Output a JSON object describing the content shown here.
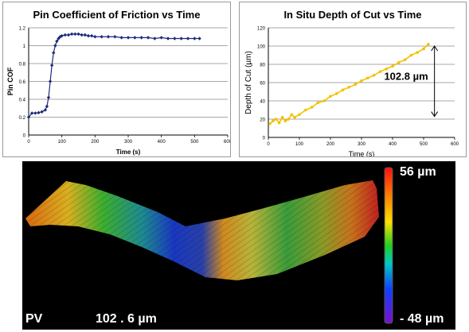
{
  "chart_data": [
    {
      "type": "scatter",
      "title": "Pin Coefficient of Friction vs Time",
      "xlabel": "Time (s)",
      "ylabel": "Pin COF",
      "xlim": [
        0,
        600
      ],
      "ylim": [
        0,
        1.2
      ],
      "xticks": [
        "0",
        "100",
        "200",
        "300",
        "400",
        "500",
        "600"
      ],
      "yticks": [
        "0",
        "0.2",
        "0.4",
        "0.6",
        "0.8",
        "1",
        "1.2"
      ],
      "grid": "horizontal",
      "color": "#1f2a7a",
      "x": [
        0,
        10,
        20,
        30,
        40,
        50,
        55,
        60,
        65,
        70,
        75,
        80,
        85,
        90,
        95,
        100,
        110,
        120,
        130,
        140,
        150,
        160,
        170,
        180,
        190,
        200,
        220,
        240,
        260,
        280,
        300,
        320,
        340,
        360,
        380,
        400,
        420,
        440,
        460,
        480,
        500,
        515
      ],
      "y": [
        0.2,
        0.245,
        0.245,
        0.25,
        0.26,
        0.28,
        0.32,
        0.42,
        0.6,
        0.78,
        0.92,
        1.0,
        1.05,
        1.08,
        1.1,
        1.11,
        1.12,
        1.12,
        1.13,
        1.13,
        1.13,
        1.12,
        1.12,
        1.11,
        1.11,
        1.1,
        1.1,
        1.1,
        1.1,
        1.09,
        1.09,
        1.09,
        1.09,
        1.09,
        1.08,
        1.09,
        1.08,
        1.08,
        1.08,
        1.08,
        1.08,
        1.08
      ]
    },
    {
      "type": "scatter",
      "title": "In Situ Depth of Cut vs Time",
      "xlabel": "Time (s)",
      "ylabel": "Depth of Cut (µm)",
      "xlim": [
        0,
        600
      ],
      "ylim": [
        0,
        120
      ],
      "xticks": [
        "0",
        "100",
        "200",
        "300",
        "400",
        "500",
        "600"
      ],
      "yticks": [
        "0",
        "20",
        "40",
        "60",
        "80",
        "100",
        "120"
      ],
      "grid": "horizontal",
      "color": "#f2c200",
      "x": [
        5,
        15,
        25,
        35,
        45,
        55,
        65,
        75,
        85,
        100,
        120,
        140,
        160,
        180,
        200,
        220,
        240,
        260,
        280,
        300,
        320,
        340,
        360,
        380,
        400,
        420,
        440,
        460,
        480,
        500,
        515
      ],
      "y": [
        15,
        18,
        20,
        16,
        22,
        18,
        20,
        25,
        22,
        25,
        30,
        33,
        38,
        40,
        45,
        48,
        52,
        55,
        58,
        62,
        65,
        68,
        72,
        75,
        78,
        82,
        85,
        90,
        93,
        97,
        102
      ],
      "annotation": {
        "text": "102.8  µm",
        "x_from": 535,
        "y_from": 100,
        "y_to": 23
      }
    }
  ],
  "surface_map": {
    "scale_max": "56 µm",
    "scale_min": "- 48 µm",
    "pv_label": "PV",
    "pv_value": "102 . 6 µm"
  }
}
